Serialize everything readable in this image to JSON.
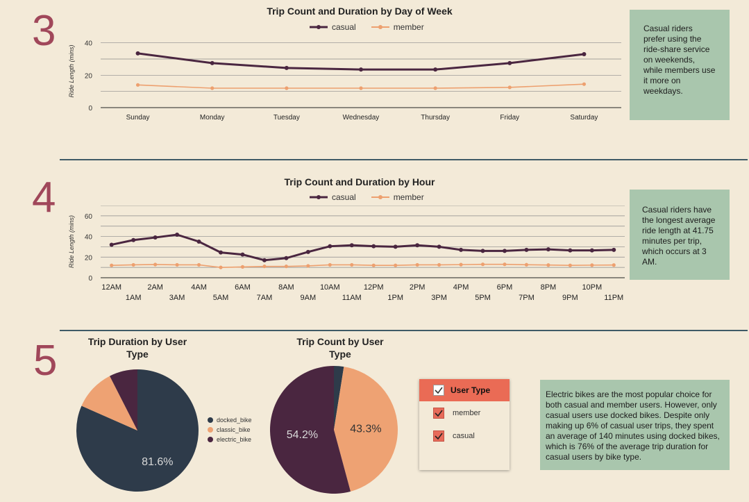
{
  "sections": {
    "s3": {
      "number": "3"
    },
    "s4": {
      "number": "4"
    },
    "s5": {
      "number": "5"
    }
  },
  "colors": {
    "casual": "#4a2640",
    "member": "#eda06f",
    "docked": "#2e3b4a",
    "classic": "#eea273",
    "electric": "#4a2640",
    "accent": "#a0475a"
  },
  "legend": {
    "casual": "casual",
    "member": "member"
  },
  "notes": {
    "n3": "Casual riders prefer using the ride-share service on weekends, while members use it more on weekdays.",
    "n4": "Casual riders have the longest average ride length at 41.75 minutes per trip, which occurs at 3 AM.",
    "n5": "Electric bikes are the most popular choice for both casual and member users. However, only casual users use docked bikes. Despite only making up 6% of casual user trips, they spent an average of 140 minutes using docked bikes, which is 76% of the average trip duration for casual users by bike type."
  },
  "filter": {
    "title": "User Type",
    "items": [
      {
        "label": "member",
        "checked": true
      },
      {
        "label": "casual",
        "checked": true
      }
    ]
  },
  "chart_data": [
    {
      "type": "line",
      "title": "Trip Count and Duration by Day of Week",
      "ylabel": "Ride Length (mins)",
      "ylim": [
        0,
        45
      ],
      "yticks": [
        0,
        20,
        40
      ],
      "categories": [
        "Sunday",
        "Monday",
        "Tuesday",
        "Wednesday",
        "Thursday",
        "Friday",
        "Saturday"
      ],
      "series": [
        {
          "name": "casual",
          "values": [
            33.5,
            27.5,
            24.5,
            23.5,
            23.5,
            27.5,
            33
          ]
        },
        {
          "name": "member",
          "values": [
            14,
            12,
            12,
            12,
            12,
            12.5,
            14.5
          ]
        }
      ]
    },
    {
      "type": "line",
      "title": "Trip Count and Duration by Hour",
      "ylabel": "Ride Length (mins)",
      "ylim": [
        0,
        70
      ],
      "yticks": [
        0,
        20,
        40,
        60
      ],
      "categories": [
        "12AM",
        "1AM",
        "2AM",
        "3AM",
        "4AM",
        "5AM",
        "6AM",
        "7AM",
        "8AM",
        "9AM",
        "10AM",
        "11AM",
        "12PM",
        "1PM",
        "2PM",
        "3PM",
        "4PM",
        "5PM",
        "6PM",
        "7PM",
        "8PM",
        "9PM",
        "10PM",
        "11PM"
      ],
      "series": [
        {
          "name": "casual",
          "values": [
            32,
            36.5,
            39,
            41.75,
            35,
            24.5,
            22.5,
            17,
            19,
            25,
            30.5,
            31.5,
            30.5,
            30,
            31.5,
            30,
            27,
            26,
            26,
            27,
            27.5,
            26.5,
            26.5,
            27
          ]
        },
        {
          "name": "member",
          "values": [
            12,
            12.5,
            12.8,
            12.5,
            12.5,
            10,
            10.5,
            11,
            11,
            11.5,
            12.5,
            12.5,
            12,
            12,
            12.5,
            12.5,
            12.7,
            13,
            13,
            12.6,
            12.3,
            12,
            12.2,
            12.3
          ]
        }
      ]
    },
    {
      "type": "pie",
      "title": "Trip Duration by User Type",
      "labels": [
        "docked_bike",
        "classic_bike",
        "electric_bike"
      ],
      "values": [
        81.6,
        10.9,
        7.5
      ],
      "shown_label": "81.6%"
    },
    {
      "type": "pie",
      "title": "Trip Count by User Type",
      "labels": [
        "docked_bike",
        "classic_bike",
        "electric_bike"
      ],
      "values": [
        2.5,
        43.3,
        54.2
      ],
      "shown_labels": [
        "43.3%",
        "54.2%"
      ]
    }
  ]
}
